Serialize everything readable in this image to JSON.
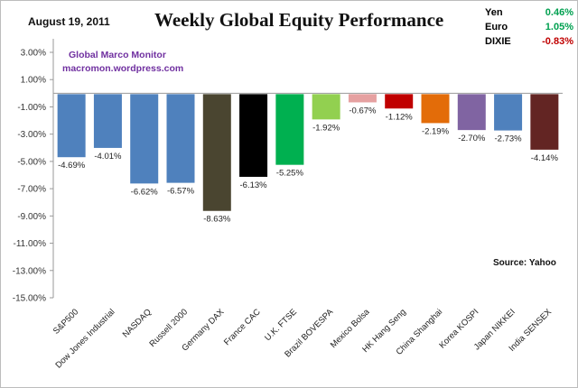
{
  "header": {
    "date": "August 19, 2011",
    "title": "Weekly Global Equity Performance"
  },
  "currencies": [
    {
      "name": "Yen",
      "value": "0.46%",
      "color": "#00a050"
    },
    {
      "name": "Euro",
      "value": "1.05%",
      "color": "#00a050"
    },
    {
      "name": "DIXIE",
      "value": "-0.83%",
      "color": "#c00000"
    }
  ],
  "watermark": {
    "line1": "Global Marco Monitor",
    "line2": "macromon.wordpress.com"
  },
  "source": "Source:  Yahoo",
  "chart_data": {
    "type": "bar",
    "title": "Weekly Global Equity Performance",
    "categories": [
      "S&P500",
      "Dow Jones Industrial",
      "NASDAQ",
      "Russell 2000",
      "Germany DAX",
      "France CAC",
      "U.K. FTSE",
      "Brazil BOVESPA",
      "Mexico Bolsa",
      "HK Hang Seng",
      "China Shanghai",
      "Korea KOSPI",
      "Japan NIKKEI",
      "India SENSEX"
    ],
    "values": [
      -4.69,
      -4.01,
      -6.62,
      -6.57,
      -8.63,
      -6.13,
      -5.25,
      -1.92,
      -0.67,
      -1.12,
      -2.19,
      -2.7,
      -2.73,
      -4.14
    ],
    "data_labels": [
      "-4.69%",
      "-4.01%",
      "-6.62%",
      "-6.57%",
      "-8.63%",
      "-6.13%",
      "-5.25%",
      "-1.92%",
      "-0.67%",
      "-1.12%",
      "-2.19%",
      "-2.70%",
      "-2.73%",
      "-4.14%"
    ],
    "colors": [
      "#4f81bd",
      "#4f81bd",
      "#4f81bd",
      "#4f81bd",
      "#4a4530",
      "#000000",
      "#00b050",
      "#92d050",
      "#e6a1a1",
      "#c00000",
      "#e36c09",
      "#8064a2",
      "#4f81bd",
      "#632523"
    ],
    "ylim": [
      -15,
      3
    ],
    "yticks": [
      "3.00%",
      "1.00%",
      "-1.00%",
      "-3.00%",
      "-5.00%",
      "-7.00%",
      "-9.00%",
      "-11.00%",
      "-13.00%",
      "-15.00%"
    ],
    "ytick_values": [
      3,
      1,
      -1,
      -3,
      -5,
      -7,
      -9,
      -11,
      -13,
      -15
    ],
    "grid": false,
    "legend": "none"
  }
}
